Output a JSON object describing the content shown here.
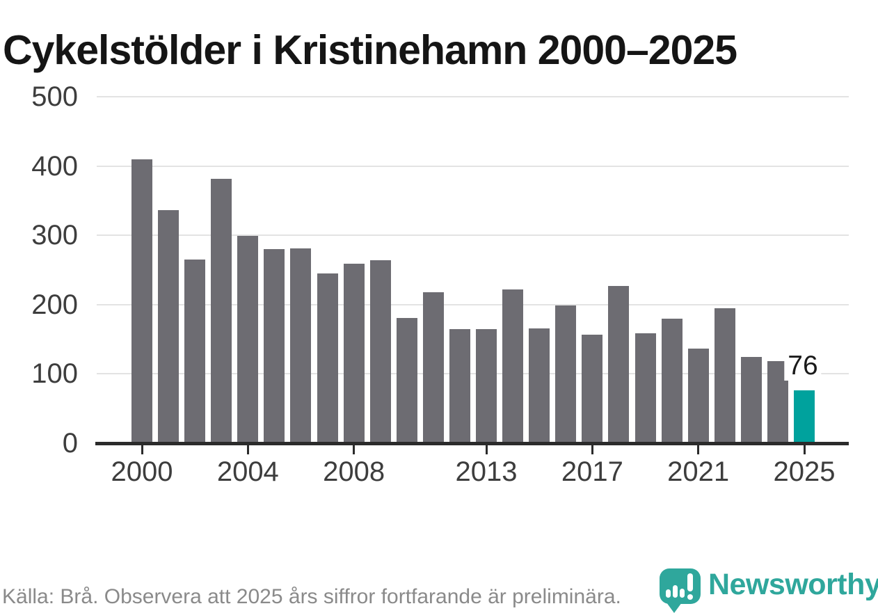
{
  "title": "Cykelstölder i Kristinehamn 2000–2025",
  "chart_data": {
    "type": "bar",
    "title": "Cykelstölder i Kristinehamn 2000–2025",
    "categories": [
      "2000",
      "2001",
      "2002",
      "2003",
      "2004",
      "2005",
      "2006",
      "2007",
      "2008",
      "2009",
      "2010",
      "2011",
      "2012",
      "2013",
      "2014",
      "2015",
      "2016",
      "2017",
      "2018",
      "2019",
      "2020",
      "2021",
      "2022",
      "2023",
      "2024",
      "2025"
    ],
    "values": [
      410,
      336,
      265,
      382,
      299,
      280,
      281,
      245,
      259,
      264,
      181,
      218,
      165,
      165,
      222,
      166,
      199,
      157,
      227,
      159,
      180,
      137,
      195,
      125,
      118,
      76
    ],
    "xlabel": "",
    "ylabel": "",
    "ylim": [
      0,
      500
    ],
    "y_ticks": [
      0,
      100,
      200,
      300,
      400,
      500
    ],
    "x_tick_labels": [
      "2000",
      "2004",
      "2008",
      "2013",
      "2017",
      "2021",
      "2025"
    ],
    "grid": "horizontal",
    "legend": "none",
    "bar_color": "#6d6c72",
    "highlight_color": "#00a29d",
    "highlight_category": "2025",
    "annotation": {
      "text": "76",
      "category": "2025"
    }
  },
  "footer": {
    "source_note": "Källa: Brå. Observera att 2025 års siffror fortfarande är preliminära."
  },
  "logo": {
    "wordmark": "Newsworthy",
    "icon": "speech-bubble-bar-chart-icon",
    "brand_color": "#2fa79c"
  }
}
